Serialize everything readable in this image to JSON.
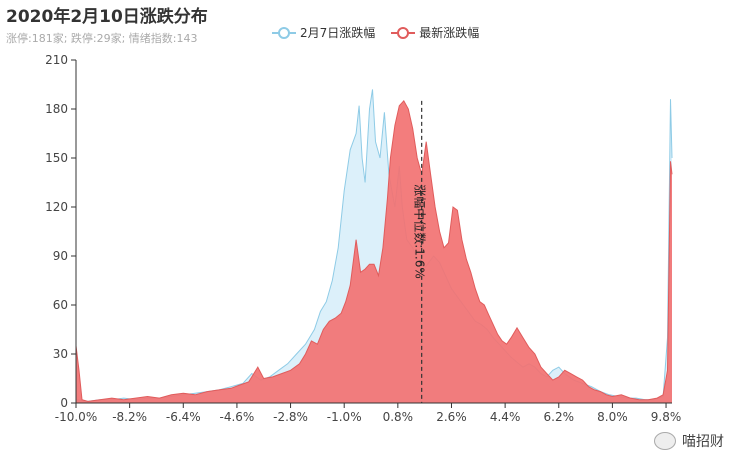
{
  "title": "2020年2月10日涨跌分布",
  "subtitle": "涨停:181家; 跌停:29家; 情绪指数:143",
  "watermark": "喵招财",
  "colors": {
    "series1_line": "#8ecbe6",
    "series1_fill": "#dcf0fa",
    "series2_line": "#e05c5c",
    "series2_fill": "#f27272",
    "axis": "#333333",
    "median_line": "#333333"
  },
  "chart_data": {
    "type": "area",
    "xlabel": "",
    "ylabel": "",
    "xlim": [
      -10.0,
      10.0
    ],
    "ylim": [
      0,
      210
    ],
    "y_ticks": [
      0,
      30,
      60,
      90,
      120,
      150,
      180,
      210
    ],
    "x_tick_labels": [
      "-10.0%",
      "-8.2%",
      "-6.4%",
      "-4.6%",
      "-2.8%",
      "-1.0%",
      "0.8%",
      "2.6%",
      "4.4%",
      "6.2%",
      "8.0%",
      "9.8%"
    ],
    "x_tick_values": [
      -10.0,
      -8.2,
      -6.4,
      -4.6,
      -2.8,
      -1.0,
      0.8,
      2.6,
      4.4,
      6.2,
      8.0,
      9.8
    ],
    "median": {
      "x": 1.6,
      "label": "涨幅中位数:1.6%"
    },
    "legend_position": "top-center",
    "series": [
      {
        "name": "2月7日涨跌幅",
        "points": [
          [
            -10.0,
            2
          ],
          [
            -9.6,
            1
          ],
          [
            -9.2,
            2
          ],
          [
            -8.8,
            2
          ],
          [
            -8.4,
            3
          ],
          [
            -8.0,
            2
          ],
          [
            -7.6,
            3
          ],
          [
            -7.2,
            3
          ],
          [
            -6.8,
            4
          ],
          [
            -6.4,
            5
          ],
          [
            -6.0,
            6
          ],
          [
            -5.6,
            7
          ],
          [
            -5.2,
            8
          ],
          [
            -4.8,
            10
          ],
          [
            -4.4,
            12
          ],
          [
            -4.1,
            18
          ],
          [
            -3.8,
            14
          ],
          [
            -3.5,
            16
          ],
          [
            -3.2,
            20
          ],
          [
            -2.9,
            24
          ],
          [
            -2.6,
            30
          ],
          [
            -2.3,
            36
          ],
          [
            -2.0,
            45
          ],
          [
            -1.8,
            56
          ],
          [
            -1.6,
            62
          ],
          [
            -1.4,
            75
          ],
          [
            -1.2,
            95
          ],
          [
            -1.0,
            130
          ],
          [
            -0.8,
            155
          ],
          [
            -0.6,
            165
          ],
          [
            -0.5,
            182
          ],
          [
            -0.4,
            150
          ],
          [
            -0.3,
            135
          ],
          [
            -0.15,
            180
          ],
          [
            -0.05,
            192
          ],
          [
            0.05,
            160
          ],
          [
            0.2,
            150
          ],
          [
            0.35,
            178
          ],
          [
            0.5,
            140
          ],
          [
            0.7,
            120
          ],
          [
            0.85,
            145
          ],
          [
            0.95,
            120
          ],
          [
            1.1,
            100
          ],
          [
            1.3,
            95
          ],
          [
            1.45,
            88
          ],
          [
            1.6,
            80
          ],
          [
            1.8,
            85
          ],
          [
            2.0,
            90
          ],
          [
            2.2,
            86
          ],
          [
            2.4,
            78
          ],
          [
            2.6,
            70
          ],
          [
            2.8,
            65
          ],
          [
            3.0,
            60
          ],
          [
            3.2,
            55
          ],
          [
            3.4,
            50
          ],
          [
            3.6,
            48
          ],
          [
            3.8,
            45
          ],
          [
            4.0,
            40
          ],
          [
            4.2,
            36
          ],
          [
            4.4,
            32
          ],
          [
            4.6,
            28
          ],
          [
            4.8,
            25
          ],
          [
            5.0,
            22
          ],
          [
            5.2,
            24
          ],
          [
            5.4,
            22
          ],
          [
            5.6,
            18
          ],
          [
            5.8,
            16
          ],
          [
            6.0,
            20
          ],
          [
            6.2,
            22
          ],
          [
            6.4,
            18
          ],
          [
            6.7,
            14
          ],
          [
            7.0,
            12
          ],
          [
            7.3,
            10
          ],
          [
            7.6,
            7
          ],
          [
            7.9,
            5
          ],
          [
            8.2,
            4
          ],
          [
            8.5,
            3
          ],
          [
            8.8,
            3
          ],
          [
            9.1,
            2
          ],
          [
            9.4,
            2
          ],
          [
            9.7,
            4
          ],
          [
            9.85,
            40
          ],
          [
            9.95,
            186
          ],
          [
            10.0,
            150
          ]
        ]
      },
      {
        "name": "最新涨跌幅",
        "points": [
          [
            -10.0,
            35
          ],
          [
            -9.9,
            20
          ],
          [
            -9.8,
            2
          ],
          [
            -9.6,
            1
          ],
          [
            -9.2,
            2
          ],
          [
            -8.8,
            3
          ],
          [
            -8.4,
            2
          ],
          [
            -8.0,
            3
          ],
          [
            -7.6,
            4
          ],
          [
            -7.2,
            3
          ],
          [
            -6.8,
            5
          ],
          [
            -6.4,
            6
          ],
          [
            -6.0,
            5
          ],
          [
            -5.6,
            7
          ],
          [
            -5.2,
            8
          ],
          [
            -4.8,
            9
          ],
          [
            -4.5,
            11
          ],
          [
            -4.2,
            13
          ],
          [
            -3.9,
            22
          ],
          [
            -3.7,
            15
          ],
          [
            -3.4,
            16
          ],
          [
            -3.1,
            18
          ],
          [
            -2.8,
            20
          ],
          [
            -2.5,
            24
          ],
          [
            -2.3,
            30
          ],
          [
            -2.1,
            38
          ],
          [
            -1.9,
            36
          ],
          [
            -1.7,
            45
          ],
          [
            -1.5,
            50
          ],
          [
            -1.3,
            52
          ],
          [
            -1.1,
            55
          ],
          [
            -0.95,
            62
          ],
          [
            -0.8,
            72
          ],
          [
            -0.6,
            100
          ],
          [
            -0.45,
            80
          ],
          [
            -0.3,
            82
          ],
          [
            -0.15,
            85
          ],
          [
            0.0,
            85
          ],
          [
            0.15,
            78
          ],
          [
            0.3,
            95
          ],
          [
            0.45,
            125
          ],
          [
            0.55,
            150
          ],
          [
            0.7,
            170
          ],
          [
            0.85,
            182
          ],
          [
            1.0,
            185
          ],
          [
            1.15,
            180
          ],
          [
            1.3,
            168
          ],
          [
            1.45,
            150
          ],
          [
            1.6,
            140
          ],
          [
            1.75,
            160
          ],
          [
            1.9,
            140
          ],
          [
            2.05,
            120
          ],
          [
            2.2,
            105
          ],
          [
            2.35,
            95
          ],
          [
            2.5,
            98
          ],
          [
            2.65,
            120
          ],
          [
            2.8,
            118
          ],
          [
            2.95,
            100
          ],
          [
            3.1,
            88
          ],
          [
            3.25,
            80
          ],
          [
            3.4,
            70
          ],
          [
            3.55,
            62
          ],
          [
            3.7,
            60
          ],
          [
            3.85,
            54
          ],
          [
            4.0,
            48
          ],
          [
            4.15,
            42
          ],
          [
            4.3,
            38
          ],
          [
            4.45,
            36
          ],
          [
            4.6,
            40
          ],
          [
            4.8,
            46
          ],
          [
            5.0,
            40
          ],
          [
            5.2,
            34
          ],
          [
            5.4,
            30
          ],
          [
            5.6,
            22
          ],
          [
            5.8,
            18
          ],
          [
            6.0,
            14
          ],
          [
            6.2,
            16
          ],
          [
            6.4,
            20
          ],
          [
            6.6,
            18
          ],
          [
            6.8,
            16
          ],
          [
            7.0,
            14
          ],
          [
            7.2,
            10
          ],
          [
            7.4,
            8
          ],
          [
            7.6,
            7
          ],
          [
            7.8,
            5
          ],
          [
            8.0,
            4
          ],
          [
            8.3,
            5
          ],
          [
            8.6,
            3
          ],
          [
            8.9,
            2
          ],
          [
            9.2,
            2
          ],
          [
            9.5,
            3
          ],
          [
            9.7,
            5
          ],
          [
            9.85,
            20
          ],
          [
            9.95,
            148
          ],
          [
            10.0,
            140
          ]
        ]
      }
    ]
  }
}
